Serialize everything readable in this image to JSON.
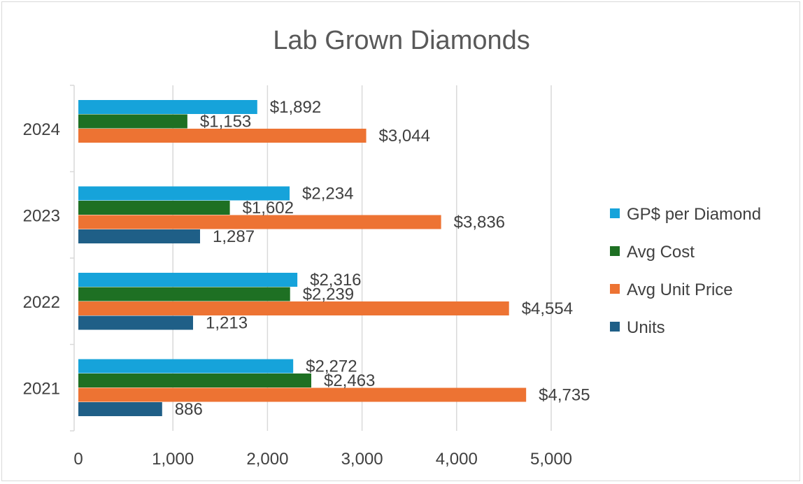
{
  "chart_data": {
    "type": "bar",
    "orientation": "horizontal",
    "title": "Lab Grown Diamonds",
    "categories": [
      "2021",
      "2022",
      "2023",
      "2024"
    ],
    "series": [
      {
        "name": "Units",
        "color": "#1f5f87",
        "values": [
          886,
          1213,
          1287,
          null
        ],
        "labels": [
          "886",
          "1,213",
          "1,287",
          ""
        ]
      },
      {
        "name": "Avg Unit Price",
        "color": "#ed7333",
        "values": [
          4735,
          4554,
          3836,
          3044
        ],
        "labels": [
          "$4,735",
          "$4,554",
          "$3,836",
          "$3,044"
        ]
      },
      {
        "name": "Avg Cost",
        "color": "#1e7023",
        "values": [
          2463,
          2239,
          1602,
          1153
        ],
        "labels": [
          "$2,463",
          "$2,239",
          "$1,602",
          "$1,153"
        ]
      },
      {
        "name": "GP$ per Diamond",
        "color": "#16a3da",
        "values": [
          2272,
          2316,
          2234,
          1892
        ],
        "labels": [
          "$2,272",
          "$2,316",
          "$2,234",
          "$1,892"
        ]
      }
    ],
    "xlim": [
      0,
      5000
    ],
    "xticks": [
      0,
      1000,
      2000,
      3000,
      4000,
      5000
    ],
    "xtick_labels": [
      "0",
      "1,000",
      "2,000",
      "3,000",
      "4,000",
      "5,000"
    ],
    "xlabel": "",
    "ylabel": "",
    "grid": true,
    "legend": {
      "position": "right",
      "order": [
        "GP$ per Diamond",
        "Avg Cost",
        "Avg Unit Price",
        "Units"
      ]
    }
  }
}
